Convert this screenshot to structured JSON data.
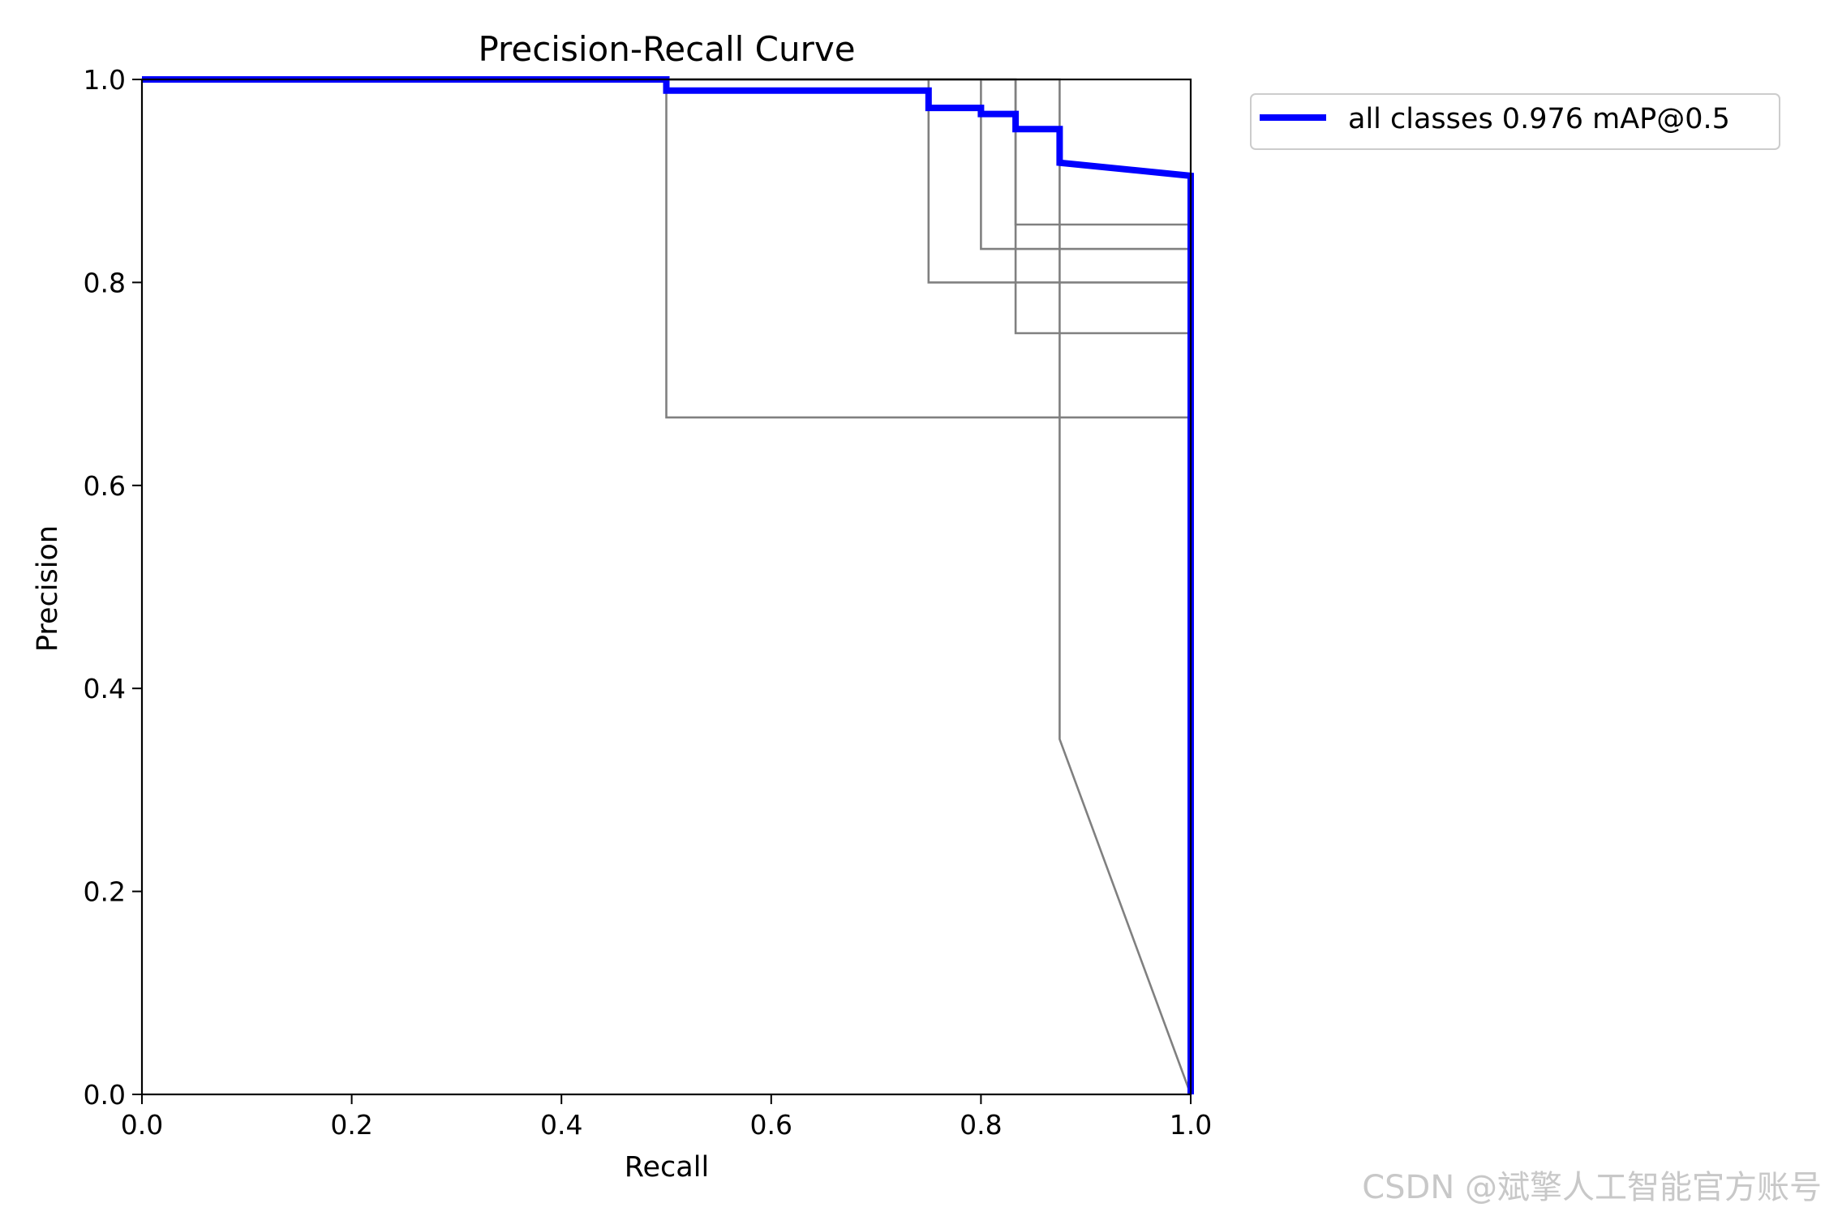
{
  "chart_data": {
    "type": "line",
    "title": "Precision-Recall Curve",
    "xlabel": "Recall",
    "ylabel": "Precision",
    "xlim": [
      0,
      1
    ],
    "ylim": [
      0,
      1
    ],
    "xticks": [
      "0.0",
      "0.2",
      "0.4",
      "0.6",
      "0.8",
      "1.0"
    ],
    "yticks": [
      "0.0",
      "0.2",
      "0.4",
      "0.6",
      "0.8",
      "1.0"
    ],
    "grid": false,
    "legend_position": "outside-top-right",
    "series": [
      {
        "name": "all classes 0.976 mAP@0.5",
        "color": "#0000ff",
        "role": "summary",
        "x": [
          0,
          0.5,
          0.5,
          0.75,
          0.75,
          0.8,
          0.8,
          0.833,
          0.833,
          0.875,
          0.875,
          1.0,
          1.0
        ],
        "y": [
          1.0,
          1.0,
          0.989,
          0.989,
          0.972,
          0.972,
          0.966,
          0.966,
          0.951,
          0.951,
          0.918,
          0.905,
          0.0
        ]
      },
      {
        "color": "#808080",
        "x": [
          0,
          0.5,
          0.5,
          1.0,
          1.0
        ],
        "y": [
          1.0,
          1.0,
          0.667,
          0.667,
          0.0
        ]
      },
      {
        "color": "#808080",
        "x": [
          0,
          0.75,
          0.75,
          1.0,
          1.0
        ],
        "y": [
          1.0,
          1.0,
          0.8,
          0.8,
          0.0
        ]
      },
      {
        "color": "#808080",
        "x": [
          0,
          0.8,
          0.8,
          1.0,
          1.0
        ],
        "y": [
          1.0,
          1.0,
          0.833,
          0.833,
          0.0
        ]
      },
      {
        "color": "#808080",
        "x": [
          0,
          0.833,
          0.833,
          1.0,
          1.0
        ],
        "y": [
          1.0,
          1.0,
          0.75,
          0.75,
          0.0
        ]
      },
      {
        "color": "#808080",
        "x": [
          0,
          0.833,
          0.833,
          1.0,
          1.0
        ],
        "y": [
          1.0,
          1.0,
          0.857,
          0.857,
          0.0
        ]
      },
      {
        "color": "#808080",
        "x": [
          0,
          0.875,
          0.875,
          1.0
        ],
        "y": [
          1.0,
          1.0,
          0.35,
          0.0
        ]
      }
    ]
  },
  "watermark": "CSDN @斌擎人工智能官方账号"
}
